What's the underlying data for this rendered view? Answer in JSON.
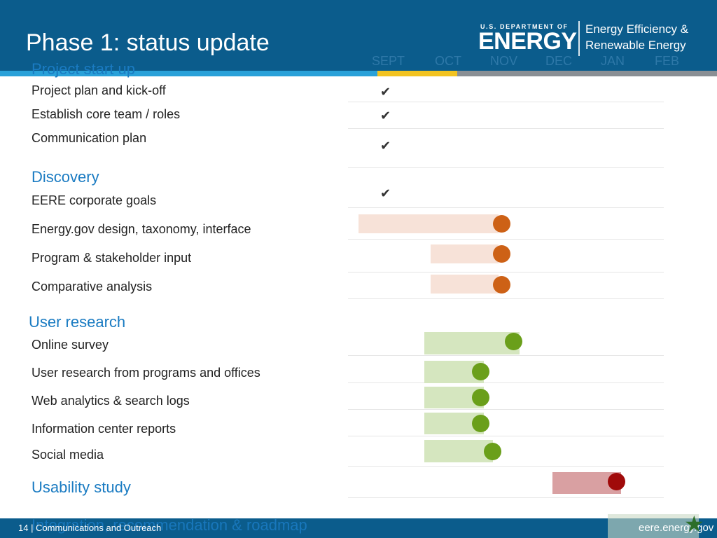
{
  "header": {
    "title": "Phase 1: status update",
    "logo": {
      "dept": "U.S. DEPARTMENT OF",
      "energy": "ENERGY",
      "office_line1": "Energy Efficiency &",
      "office_line2": "Renewable Energy"
    }
  },
  "timeline": {
    "months": [
      "SEPT",
      "OCT",
      "NOV",
      "DEC",
      "JAN",
      "FEB"
    ]
  },
  "sections": {
    "project_start": {
      "label": "Project start up",
      "tasks": [
        "Project plan and kick-off",
        "Establish core team / roles",
        "Communication plan"
      ]
    },
    "discovery": {
      "label": "Discovery",
      "tasks": [
        "EERE corporate goals",
        "Energy.gov design, taxonomy, interface",
        "Program & stakeholder input",
        "Comparative analysis"
      ]
    },
    "user_research": {
      "label": "User research",
      "tasks": [
        "Online survey",
        "User research from programs and offices",
        "Web analytics & search logs",
        "Information center reports",
        "Social media"
      ]
    },
    "usability": {
      "label": "Usability study"
    },
    "integration": {
      "label": "Integration, recommendation & roadmap"
    }
  },
  "status": {
    "check_mark": "✔",
    "colors": {
      "discovery": "#cd6116",
      "user_research": "#6a9f1a",
      "usability": "#a00a0a"
    }
  },
  "footer": {
    "left": "14 | Communications and Outreach",
    "right": "eere.energy.gov"
  }
}
